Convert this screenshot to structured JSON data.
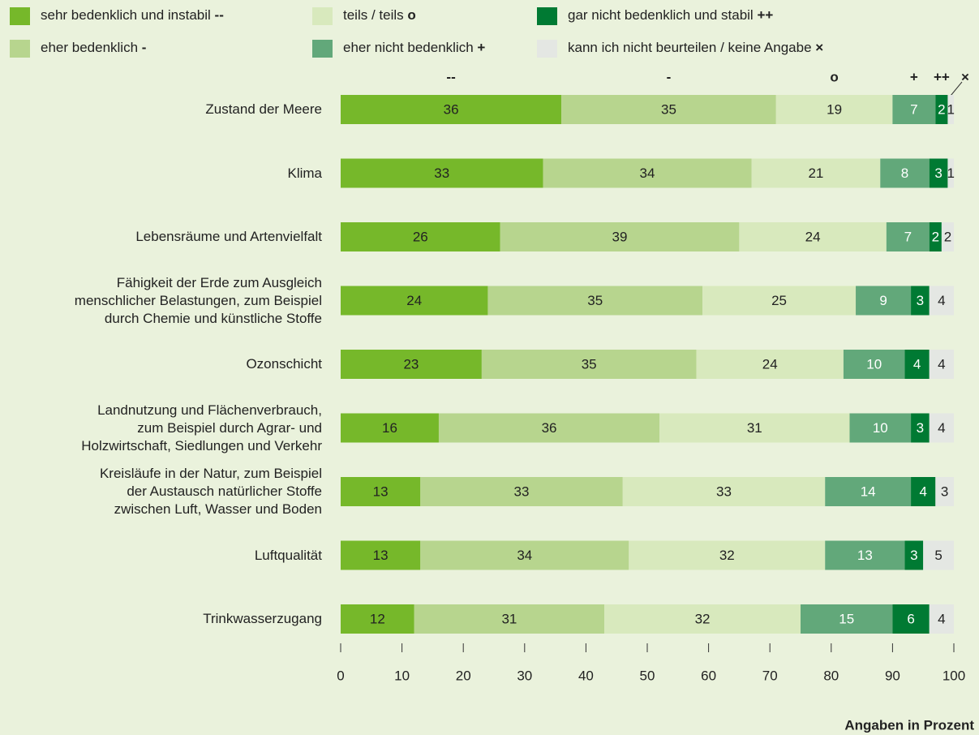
{
  "chart_data": {
    "type": "stacked_barh",
    "categories": [
      "Zustand der Meere",
      "Klima",
      "Lebensräume und Artenvielfalt",
      "Fähigkeit der Erde zum Ausgleich\nmenschlicher Belastungen, zum Beispiel\ndurch Chemie und künstliche Stoffe",
      "Ozonschicht",
      "Landnutzung und Flächenverbrauch,\nzum Beispiel durch Agrar- und\nHolzwirtschaft, Siedlungen und Verkehr",
      "Kreisläufe in der Natur, zum Beispiel\nder Austausch natürlicher Stoffe\nzwischen Luft, Wasser und Boden",
      "Luftqualität",
      "Trinkwasserzugang"
    ],
    "series": [
      {
        "name": "sehr bedenklich und instabil",
        "symbol": "--",
        "color": "#76b82a",
        "label_color": "#222",
        "values": [
          36,
          33,
          26,
          24,
          23,
          16,
          13,
          13,
          12
        ]
      },
      {
        "name": "eher bedenklich",
        "symbol": "-",
        "color": "#b7d58e",
        "label_color": "#222",
        "values": [
          35,
          34,
          39,
          35,
          35,
          36,
          33,
          34,
          31
        ]
      },
      {
        "name": "teils / teils",
        "symbol": "o",
        "color": "#d8e9bd",
        "label_color": "#222",
        "values": [
          19,
          21,
          24,
          25,
          24,
          31,
          33,
          32,
          32
        ]
      },
      {
        "name": "eher nicht bedenklich",
        "symbol": "+",
        "color": "#62a87a",
        "label_color": "#ffffff",
        "values": [
          7,
          8,
          7,
          9,
          10,
          10,
          14,
          13,
          15
        ]
      },
      {
        "name": "gar nicht bedenklich und stabil",
        "symbol": "++",
        "color": "#007a33",
        "label_color": "#ffffff",
        "values": [
          2,
          3,
          2,
          3,
          4,
          3,
          4,
          3,
          6
        ]
      },
      {
        "name": "kann ich nicht beurteilen / keine Angabe",
        "symbol": "×",
        "color": "#e4e7e3",
        "label_color": "#222",
        "values": [
          1,
          1,
          2,
          4,
          4,
          4,
          3,
          5,
          4
        ]
      }
    ],
    "xlim": [
      0,
      100
    ],
    "xticks": [
      0,
      10,
      20,
      30,
      40,
      50,
      60,
      70,
      80,
      90,
      100
    ],
    "xlabel": "Angaben in Prozent"
  }
}
